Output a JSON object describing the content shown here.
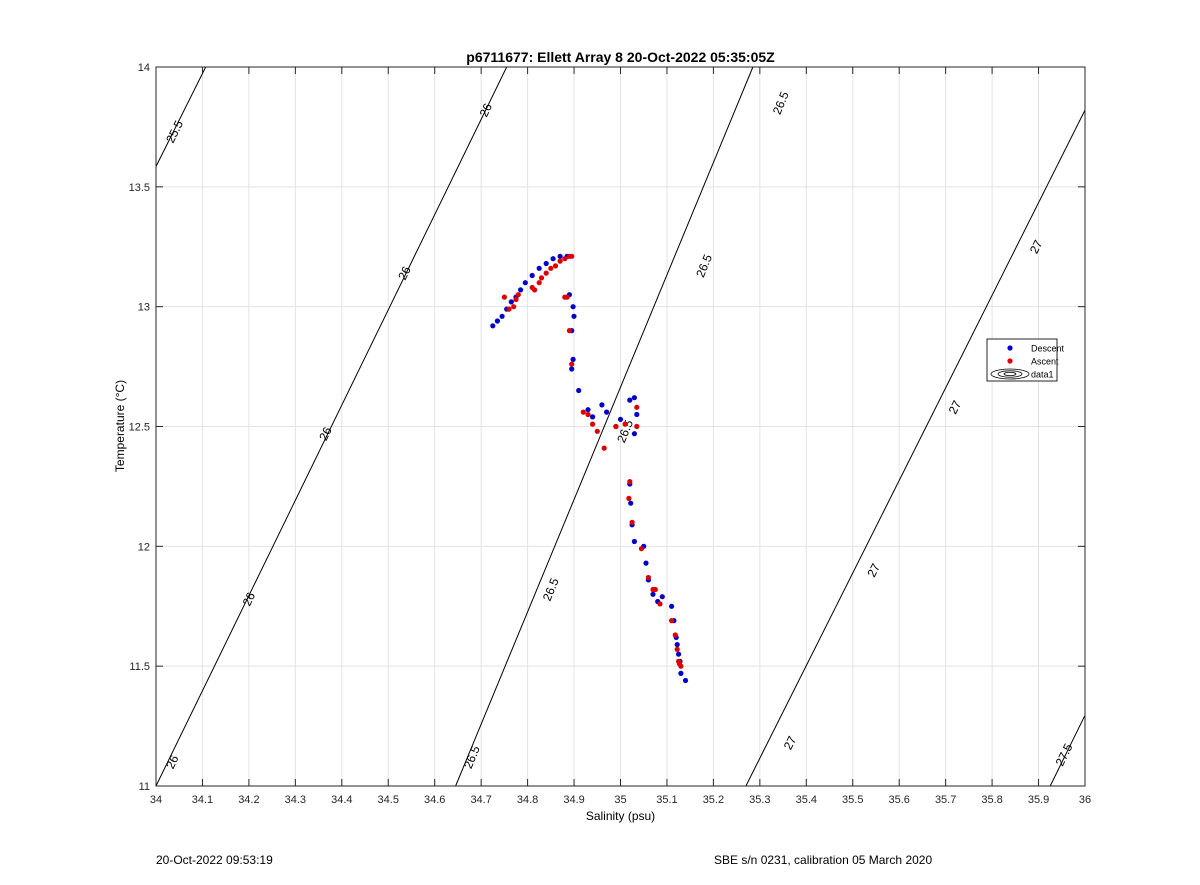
{
  "chart_data": {
    "type": "scatter",
    "title": "p6711677: Ellett Array 8 20-Oct-2022 05:35:05Z",
    "xlabel": "Salinity (psu)",
    "ylabel": "Temperature (°C)",
    "xlim": [
      34,
      36
    ],
    "ylim": [
      11,
      14
    ],
    "xticks": [
      "34",
      "34.1",
      "34.2",
      "34.3",
      "34.4",
      "34.5",
      "34.6",
      "34.7",
      "34.8",
      "34.9",
      "35",
      "35.1",
      "35.2",
      "35.3",
      "35.4",
      "35.5",
      "35.6",
      "35.7",
      "35.8",
      "35.9",
      "36"
    ],
    "yticks": [
      "11",
      "11.5",
      "12",
      "12.5",
      "13",
      "13.5",
      "14"
    ],
    "grid": true,
    "legend": {
      "position": "right",
      "entries": [
        {
          "label": "Descent",
          "color": "#0000cc",
          "marker": "dot"
        },
        {
          "label": "Ascent",
          "color": "#dd0000",
          "marker": "dot"
        },
        {
          "label": "data1",
          "color": "#000000",
          "marker": "contour"
        }
      ]
    },
    "series": [
      {
        "name": "Descent",
        "color": "#0000cc",
        "points": [
          [
            34.725,
            12.92
          ],
          [
            34.735,
            12.94
          ],
          [
            34.745,
            12.96
          ],
          [
            34.755,
            12.99
          ],
          [
            34.765,
            13.02
          ],
          [
            34.775,
            13.04
          ],
          [
            34.785,
            13.07
          ],
          [
            34.795,
            13.1
          ],
          [
            34.81,
            13.13
          ],
          [
            34.825,
            13.16
          ],
          [
            34.84,
            13.18
          ],
          [
            34.855,
            13.2
          ],
          [
            34.87,
            13.21
          ],
          [
            34.885,
            13.21
          ],
          [
            34.89,
            13.05
          ],
          [
            34.895,
            12.9
          ],
          [
            34.898,
            13.0
          ],
          [
            34.9,
            12.96
          ],
          [
            34.898,
            12.78
          ],
          [
            34.895,
            12.74
          ],
          [
            34.91,
            12.65
          ],
          [
            34.93,
            12.57
          ],
          [
            34.94,
            12.54
          ],
          [
            34.96,
            12.59
          ],
          [
            34.97,
            12.56
          ],
          [
            34.99,
            12.5
          ],
          [
            35.0,
            12.53
          ],
          [
            35.02,
            12.61
          ],
          [
            35.03,
            12.62
          ],
          [
            35.035,
            12.55
          ],
          [
            35.03,
            12.47
          ],
          [
            35.02,
            12.26
          ],
          [
            35.022,
            12.18
          ],
          [
            35.025,
            12.09
          ],
          [
            35.03,
            12.02
          ],
          [
            35.05,
            12.0
          ],
          [
            35.055,
            11.93
          ],
          [
            35.06,
            11.86
          ],
          [
            35.07,
            11.8
          ],
          [
            35.08,
            11.77
          ],
          [
            35.09,
            11.79
          ],
          [
            35.11,
            11.75
          ],
          [
            35.115,
            11.69
          ],
          [
            35.12,
            11.62
          ],
          [
            35.122,
            11.59
          ],
          [
            35.125,
            11.55
          ],
          [
            35.128,
            11.52
          ],
          [
            35.13,
            11.47
          ],
          [
            35.14,
            11.44
          ]
        ]
      },
      {
        "name": "Ascent",
        "color": "#dd0000",
        "points": [
          [
            34.75,
            13.04
          ],
          [
            34.76,
            12.99
          ],
          [
            34.77,
            13.0
          ],
          [
            34.775,
            13.03
          ],
          [
            34.78,
            13.05
          ],
          [
            34.81,
            13.08
          ],
          [
            34.815,
            13.07
          ],
          [
            34.825,
            13.1
          ],
          [
            34.83,
            13.12
          ],
          [
            34.84,
            13.14
          ],
          [
            34.85,
            13.16
          ],
          [
            34.86,
            13.17
          ],
          [
            34.87,
            13.19
          ],
          [
            34.88,
            13.2
          ],
          [
            34.89,
            13.21
          ],
          [
            34.895,
            13.21
          ],
          [
            34.88,
            13.04
          ],
          [
            34.885,
            13.04
          ],
          [
            34.89,
            12.9
          ],
          [
            34.895,
            12.76
          ],
          [
            34.92,
            12.56
          ],
          [
            34.93,
            12.55
          ],
          [
            34.94,
            12.51
          ],
          [
            34.95,
            12.48
          ],
          [
            34.965,
            12.41
          ],
          [
            34.99,
            12.5
          ],
          [
            35.01,
            12.51
          ],
          [
            35.035,
            12.58
          ],
          [
            35.035,
            12.5
          ],
          [
            35.02,
            12.27
          ],
          [
            35.018,
            12.2
          ],
          [
            35.025,
            12.1
          ],
          [
            35.045,
            11.99
          ],
          [
            35.06,
            11.87
          ],
          [
            35.07,
            11.82
          ],
          [
            35.075,
            11.82
          ],
          [
            35.085,
            11.76
          ],
          [
            35.11,
            11.69
          ],
          [
            35.118,
            11.63
          ],
          [
            35.122,
            11.57
          ],
          [
            35.125,
            11.52
          ],
          [
            35.127,
            11.51
          ],
          [
            35.13,
            11.5
          ]
        ]
      }
    ],
    "contours": {
      "name": "data1",
      "color": "#000000",
      "lines": [
        {
          "label": "25.5",
          "segments": [
            [
              [
                34,
                13.585
              ],
              [
                34.107,
                14
              ]
            ]
          ]
        },
        {
          "label": "26",
          "segments": [
            [
              [
                34,
                11.0
              ],
              [
                34.755,
                14
              ]
            ]
          ]
        },
        {
          "label": "26.5",
          "segments": [
            [
              [
                34.645,
                11.0
              ],
              [
                35.285,
                14
              ]
            ]
          ]
        },
        {
          "label": "27",
          "segments": [
            [
              [
                35.27,
                11.0
              ],
              [
                36,
                13.82
              ]
            ]
          ]
        },
        {
          "label": "27.5",
          "segments": [
            [
              [
                35.925,
                11.0
              ],
              [
                36,
                11.295
              ]
            ]
          ]
        }
      ],
      "labels": [
        {
          "text": "25.5",
          "x": 34.04,
          "y": 13.73
        },
        {
          "text": "26",
          "x": 34.035,
          "y": 11.1
        },
        {
          "text": "26",
          "x": 34.2,
          "y": 11.78
        },
        {
          "text": "26",
          "x": 34.365,
          "y": 12.47
        },
        {
          "text": "26",
          "x": 34.535,
          "y": 13.14
        },
        {
          "text": "26",
          "x": 34.71,
          "y": 13.82
        },
        {
          "text": "26.5",
          "x": 34.68,
          "y": 11.12
        },
        {
          "text": "26.5",
          "x": 34.85,
          "y": 11.82
        },
        {
          "text": "26.5",
          "x": 35.01,
          "y": 12.48
        },
        {
          "text": "26.5",
          "x": 35.18,
          "y": 13.17
        },
        {
          "text": "26.5",
          "x": 35.345,
          "y": 13.85
        },
        {
          "text": "27",
          "x": 35.365,
          "y": 11.18
        },
        {
          "text": "27",
          "x": 35.545,
          "y": 11.9
        },
        {
          "text": "27",
          "x": 35.72,
          "y": 12.58
        },
        {
          "text": "27",
          "x": 35.895,
          "y": 13.25
        },
        {
          "text": "27.5",
          "x": 35.955,
          "y": 11.13
        }
      ]
    }
  },
  "footer": {
    "left": "20-Oct-2022 09:53:19",
    "right": "SBE s/n 0231, calibration 05 March 2020"
  }
}
